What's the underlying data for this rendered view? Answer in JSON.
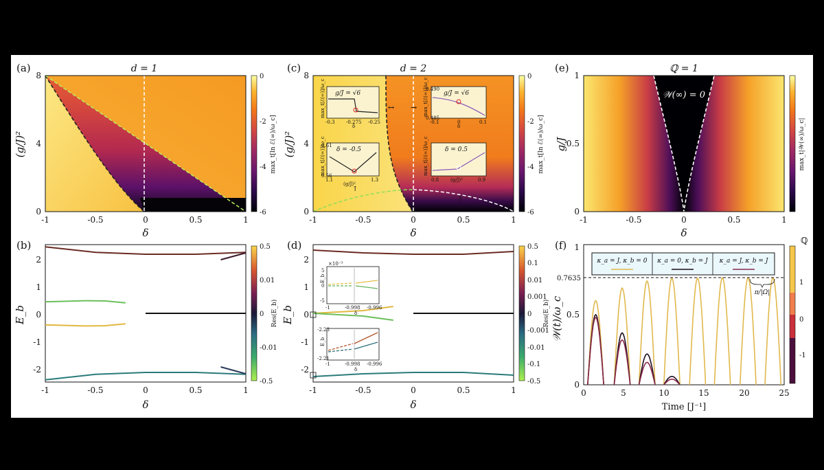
{
  "figure": {
    "panel_a": {
      "label": "(a)",
      "title": "d = 1",
      "xlabel": "δ",
      "ylabel": "(g/J)²",
      "xticks": [
        "-1",
        "-0.5",
        "0",
        "0.5",
        "1"
      ],
      "yticks": [
        "0",
        "4",
        "8"
      ],
      "colorbar": {
        "label": "max_t[ln ℰ(∞)/ω_c]",
        "ticks": [
          "0",
          "-2",
          "-4",
          "-6"
        ]
      }
    },
    "panel_b": {
      "label": "(b)",
      "xlabel": "δ",
      "ylabel": "E_b",
      "xticks": [
        "-1",
        "-0.5",
        "0",
        "0.5",
        "1"
      ],
      "yticks": [
        "2",
        "1",
        "0",
        "-1",
        "-2"
      ],
      "colorbar": {
        "label": "Res(E_b)",
        "ticks": [
          "0.5",
          "0.01",
          "0",
          "-0.01",
          "-0.5"
        ]
      }
    },
    "panel_c": {
      "label": "(c)",
      "title": "d = 2",
      "xlabel": "δ",
      "ylabel": "(g/J)²",
      "xticks": [
        "-1",
        "-0.5",
        "0",
        "0.5",
        "1"
      ],
      "yticks": [
        "0",
        "4",
        "8"
      ],
      "colorbar": {
        "label": "max_t[ln ℰ(∞)/ω_c]",
        "ticks": [
          "0",
          "-2",
          "-4",
          "-6"
        ]
      },
      "insets": [
        {
          "title": "g/J = √6",
          "xticks": [
            "-0.3",
            "-0.275",
            "-0.25"
          ],
          "xlabel": "δ",
          "ylabel": "max_t[ℰ(∞)]/ω_c"
        },
        {
          "title": "g/J = √6",
          "xticks": [
            "-0.1",
            "0",
            "0.1"
          ],
          "xlabel": "δ",
          "ylabel": "max_t[ℰ(∞)]/ω_c",
          "yticks": [
            "0.490",
            "0.485"
          ]
        },
        {
          "title": "δ = -0.5",
          "xticks": [
            "1.1",
            "1.3"
          ],
          "xlabel": "(g/J)²",
          "ylabel": "max_t[ℰ(∞)]/ω_c",
          "yticks": [
            "0.61",
            "0.56"
          ]
        },
        {
          "title": "δ = 0.5",
          "xticks": [
            "0.8",
            "0.9"
          ],
          "xlabel": "(g/J)²",
          "ylabel": "max_t[ℰ(∞)]/ω_c"
        }
      ]
    },
    "panel_d": {
      "label": "(d)",
      "xlabel": "δ",
      "ylabel": "E_b",
      "xticks": [
        "-1",
        "-0.5",
        "0",
        "0.5",
        "1"
      ],
      "yticks": [
        "2",
        "1",
        "0",
        "-1",
        "-2"
      ],
      "colorbar": {
        "label": "Res(E_b)",
        "ticks": [
          "0.5",
          "0.1",
          "0.01",
          "0.001",
          "0",
          "-0.001",
          "-0.01",
          "-0.1",
          "-0.5"
        ]
      },
      "insets": [
        {
          "scale": "×10⁻³",
          "ylabel": "E_b",
          "yticks": [
            "5",
            "0",
            "-5"
          ],
          "xticks": [
            "-1",
            "-0.998",
            "-0.996"
          ],
          "xlabel": "δ"
        },
        {
          "ylabel": "E_b",
          "yticks": [
            "-2.23",
            "-2.21"
          ],
          "xticks": [
            "-1",
            "-0.998",
            "-0.996"
          ],
          "xlabel": "δ"
        }
      ]
    },
    "panel_e": {
      "label": "(e)",
      "title": "ℚ = 1",
      "xlabel": "δ",
      "ylabel": "g/J",
      "xticks": [
        "-1",
        "-0.5",
        "0",
        "0.5",
        "1"
      ],
      "yticks": [
        "0",
        "0.5",
        "1"
      ],
      "annotation": "𝒲(∞) = 0",
      "colorbar": {
        "label": "max_t|𝒲(∞)/ω_c|"
      }
    },
    "panel_f": {
      "label": "(f)",
      "xlabel": "Time [J⁻¹]",
      "ylabel": "𝒲(t)/ω_c",
      "xticks": [
        "0",
        "5",
        "10",
        "15",
        "20",
        "25"
      ],
      "yticks": [
        "0",
        "0.5",
        "1"
      ],
      "ref_label": "0.7635",
      "period_label": "π/|Ω|",
      "legend": [
        "κ_a = J, κ_b = 0",
        "κ_a = 0, κ_b = J",
        "κ_a = J, κ_b = J"
      ],
      "colorbar": {
        "label": "ℚ",
        "ticks": [
          "1",
          "0",
          "-1"
        ]
      }
    }
  },
  "chart_data": [
    {
      "type": "heatmap",
      "panel": "a",
      "title": "d = 1",
      "xlabel": "δ",
      "ylabel": "(g/J)²",
      "xlim": [
        -1,
        1
      ],
      "ylim": [
        0,
        8
      ],
      "clim": [
        -6,
        0
      ],
      "boundaries": [
        {
          "name": "black dashed (lower-left)",
          "x": [
            -1,
            -0.75,
            -0.5,
            -0.25,
            0
          ],
          "y": [
            8,
            5.6,
            3.4,
            1.4,
            0
          ]
        },
        {
          "name": "green dashed (diagonal)",
          "x": [
            -1,
            0,
            1
          ],
          "y": [
            8,
            4,
            0
          ]
        },
        {
          "name": "white dashed vertical",
          "x": [
            0,
            0
          ],
          "y": [
            0,
            8
          ]
        }
      ]
    },
    {
      "type": "line",
      "panel": "b",
      "xlabel": "δ",
      "ylabel": "E_b",
      "xlim": [
        -1,
        1
      ],
      "ylim": [
        -2.5,
        2.5
      ],
      "series": [
        {
          "name": "upper band",
          "x": [
            -1,
            -0.5,
            0,
            0.5,
            1
          ],
          "y": [
            2.42,
            2.22,
            2.15,
            2.15,
            2.22
          ]
        },
        {
          "name": "upper branch right",
          "x": [
            0.75,
            0.9,
            1
          ],
          "y": [
            1.95,
            2.1,
            2.2
          ]
        },
        {
          "name": "lower band",
          "x": [
            -1,
            -0.5,
            0,
            0.5,
            1
          ],
          "y": [
            -2.42,
            -2.22,
            -2.15,
            -2.15,
            -2.22
          ]
        },
        {
          "name": "lower branch right",
          "x": [
            0.75,
            0.9,
            1
          ],
          "y": [
            -1.95,
            -2.1,
            -2.2
          ]
        },
        {
          "name": "bound state +",
          "x": [
            -1,
            -0.6,
            -0.4,
            -0.2
          ],
          "y": [
            0.42,
            0.46,
            0.45,
            0.38
          ]
        },
        {
          "name": "bound state -",
          "x": [
            -1,
            -0.6,
            -0.4,
            -0.2
          ],
          "y": [
            -0.42,
            -0.46,
            -0.45,
            -0.38
          ]
        },
        {
          "name": "zero mode",
          "x": [
            0,
            1
          ],
          "y": [
            0,
            0
          ]
        }
      ]
    },
    {
      "type": "heatmap",
      "panel": "c",
      "title": "d = 2",
      "xlabel": "δ",
      "ylabel": "(g/J)²",
      "xlim": [
        -1,
        1
      ],
      "ylim": [
        0,
        8
      ],
      "clim": [
        -6,
        0
      ],
      "boundaries": [
        {
          "name": "black dashed left",
          "x": [
            -0.3,
            -0.3,
            -0.25,
            -0.1,
            0
          ],
          "y": [
            8,
            4,
            2,
            0.7,
            0
          ]
        },
        {
          "name": "green dashed",
          "x": [
            -1,
            -0.5,
            0
          ],
          "y": [
            0,
            1.0,
            1.3
          ]
        },
        {
          "name": "white dashed",
          "x": [
            0,
            0.5,
            1
          ],
          "y": [
            1.3,
            0.9,
            0
          ]
        },
        {
          "name": "white dashed vertical",
          "x": [
            0,
            0
          ],
          "y": [
            0,
            8
          ]
        }
      ]
    },
    {
      "type": "line",
      "panel": "d",
      "xlabel": "δ",
      "ylabel": "E_b",
      "xlim": [
        -1,
        1
      ],
      "ylim": [
        -2.5,
        2.5
      ],
      "series": [
        {
          "name": "upper band",
          "x": [
            -1,
            -0.5,
            0,
            0.5,
            1
          ],
          "y": [
            2.3,
            2.2,
            2.15,
            2.15,
            2.25
          ]
        },
        {
          "name": "lower band",
          "x": [
            -1,
            -0.5,
            0,
            0.5,
            1
          ],
          "y": [
            -2.3,
            -2.2,
            -2.15,
            -2.15,
            -2.25
          ]
        },
        {
          "name": "bound +",
          "x": [
            -1,
            -0.5,
            -0.2
          ],
          "y": [
            0,
            0.1,
            0.25
          ]
        },
        {
          "name": "bound -",
          "x": [
            -1,
            -0.5,
            -0.2
          ],
          "y": [
            0,
            -0.1,
            -0.25
          ]
        },
        {
          "name": "zero mode",
          "x": [
            0,
            1
          ],
          "y": [
            0,
            0
          ]
        }
      ]
    },
    {
      "type": "heatmap",
      "panel": "e",
      "title": "ℚ = 1",
      "xlabel": "δ",
      "ylabel": "g/J",
      "xlim": [
        -1,
        1
      ],
      "ylim": [
        0,
        1
      ],
      "boundaries": [
        {
          "name": "white dashed",
          "x": [
            -0.3,
            -0.15,
            0,
            0.15,
            0.3
          ],
          "y": [
            1,
            0.5,
            0,
            0.5,
            1
          ]
        }
      ]
    },
    {
      "type": "line",
      "panel": "f",
      "xlabel": "Time [J⁻¹]",
      "ylabel": "𝒲(t)/ω_c",
      "xlim": [
        0,
        25
      ],
      "ylim": [
        0,
        1
      ],
      "reference_line": 0.7635,
      "series": [
        {
          "name": "κ_a = J, κ_b = 0",
          "peak_times": [
            1.5,
            4.8,
            7.9,
            11.0,
            14.2,
            17.3,
            20.5,
            23.6
          ],
          "peaks": [
            0.6,
            0.69,
            0.74,
            0.76,
            0.76,
            0.7635,
            0.7635,
            0.7635
          ]
        },
        {
          "name": "κ_a = 0, κ_b = J",
          "peak_times": [
            1.5,
            4.8,
            7.9,
            11.0
          ],
          "peaks": [
            0.5,
            0.37,
            0.22,
            0.06
          ]
        },
        {
          "name": "κ_a = J, κ_b = J",
          "peak_times": [
            1.5,
            4.8,
            7.9,
            11.0
          ],
          "peaks": [
            0.48,
            0.32,
            0.16,
            0.04
          ]
        }
      ]
    }
  ]
}
